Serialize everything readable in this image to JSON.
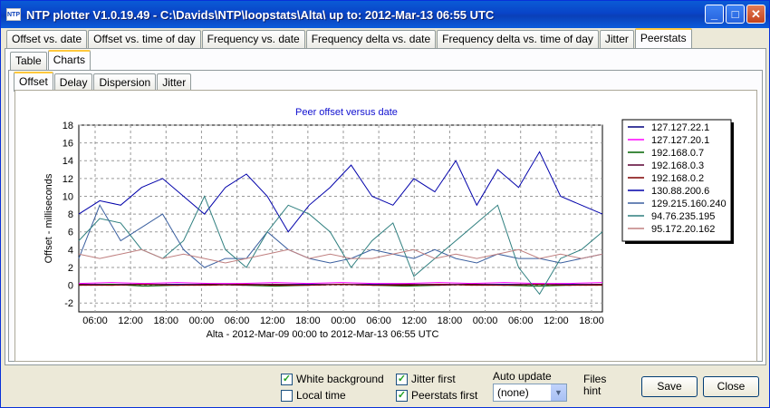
{
  "window": {
    "title": "NTP plotter V1.0.19.49 - C:\\Davids\\NTP\\loopstats\\Alta\\  up to: 2012-Mar-13 06:55 UTC",
    "icon": "ntp-app-icon",
    "icon_text": "NTP"
  },
  "main_tabs": [
    "Offset vs. date",
    "Offset vs. time of day",
    "Frequency vs. date",
    "Frequency delta vs. date",
    "Frequency delta vs. time of day",
    "Jitter",
    "Peerstats"
  ],
  "main_active": 6,
  "sub_tabs": [
    "Table",
    "Charts"
  ],
  "sub_active": 1,
  "chart_tabs": [
    "Offset",
    "Delay",
    "Dispersion",
    "Jitter"
  ],
  "chart_active": 0,
  "chart_data": {
    "type": "line",
    "title": "Peer offset versus date",
    "xlabel": "Alta  -  2012-Mar-09 00:00 to 2012-Mar-13 06:55 UTC",
    "ylabel": "Offset - milliseconds",
    "ylim": [
      -3,
      18
    ],
    "yticks": [
      -2,
      0,
      2,
      4,
      6,
      8,
      10,
      12,
      14,
      16,
      18
    ],
    "xticks": [
      "06:00",
      "12:00",
      "18:00",
      "00:00",
      "06:00",
      "12:00",
      "18:00",
      "00:00",
      "06:00",
      "12:00",
      "18:00",
      "00:00",
      "06:00",
      "12:00",
      "18:00"
    ],
    "grid": true,
    "legend_position": "right",
    "series": [
      {
        "name": "127.127.22.1",
        "color": "#00007f",
        "values": [
          0.1,
          0.1,
          0.1,
          0.1,
          0.1,
          0.1,
          0.1,
          0.1,
          0.1,
          0.1,
          0.1,
          0.1,
          0.1,
          0.1,
          0.1,
          0.1,
          0.1
        ]
      },
      {
        "name": "127.127.20.1",
        "color": "#ff00ff",
        "values": [
          0.2,
          0.3,
          0.2,
          0.3,
          0.2,
          0.2,
          0.3,
          0.2,
          0.3,
          0.2,
          0.2,
          0.3,
          0.2,
          0.3,
          0.2,
          0.2,
          0.3
        ]
      },
      {
        "name": "192.168.0.7",
        "color": "#006400",
        "values": [
          0.0,
          0.1,
          -0.1,
          0.0,
          0.1,
          0.0,
          -0.1,
          0.0,
          0.1,
          0.0,
          -0.1,
          0.0,
          0.1,
          0.0,
          -0.1,
          0.0,
          0.1
        ]
      },
      {
        "name": "192.168.0.3",
        "color": "#5a0032",
        "values": [
          0.1,
          0.0,
          0.1,
          0.0,
          0.1,
          0.0,
          0.1,
          0.0,
          0.1,
          0.0,
          0.1,
          0.0,
          0.1,
          0.0,
          0.1,
          0.0,
          0.1
        ]
      },
      {
        "name": "192.168.0.2",
        "color": "#7f0000",
        "values": [
          0.0,
          0.0,
          0.1,
          0.0,
          0.0,
          0.1,
          0.0,
          0.0,
          0.1,
          0.0,
          0.0,
          0.1,
          0.0,
          0.0,
          0.1,
          0.0,
          0.0
        ]
      },
      {
        "name": "130.88.200.6",
        "color": "#0000aa",
        "values": [
          8,
          9.5,
          9,
          11,
          12,
          10,
          8,
          11,
          12.5,
          10,
          6,
          9,
          11,
          13.5,
          10,
          9,
          12,
          10.5,
          14,
          9,
          13,
          11,
          15,
          10,
          9,
          8
        ]
      },
      {
        "name": "129.215.160.240",
        "color": "#3a5f9f",
        "values": [
          3,
          9,
          5,
          6.5,
          8,
          4,
          2,
          3,
          3,
          6,
          4,
          3,
          2.5,
          3,
          4,
          3.5,
          3,
          4,
          3,
          2.5,
          3.5,
          3,
          3,
          2.5,
          3,
          3.5
        ]
      },
      {
        "name": "94.76.235.195",
        "color": "#2f7f7f",
        "values": [
          5,
          7.5,
          7,
          4,
          3,
          5,
          10,
          4,
          2,
          6,
          9,
          8,
          6,
          2,
          5,
          7,
          1,
          3,
          5,
          7,
          9,
          2,
          -1,
          3,
          4,
          6
        ]
      },
      {
        "name": "95.172.20.162",
        "color": "#c08080",
        "values": [
          3.5,
          3,
          3.5,
          4,
          3,
          3.5,
          3,
          2.5,
          3,
          3.5,
          4,
          3,
          3.5,
          3,
          3,
          3.5,
          4,
          3,
          3.5,
          3,
          3.5,
          4,
          3,
          3.5,
          3,
          3.5
        ]
      }
    ]
  },
  "footer": {
    "white_background": {
      "label": "White background",
      "checked": true
    },
    "local_time": {
      "label": "Local time",
      "checked": false
    },
    "jitter_first": {
      "label": "Jitter first",
      "checked": true
    },
    "peerstats_first": {
      "label": "Peerstats first",
      "checked": true
    },
    "auto_update_label": "Auto update",
    "auto_update_value": "(none)",
    "files_hint": "Files\nhint",
    "save": "Save",
    "close": "Close"
  }
}
